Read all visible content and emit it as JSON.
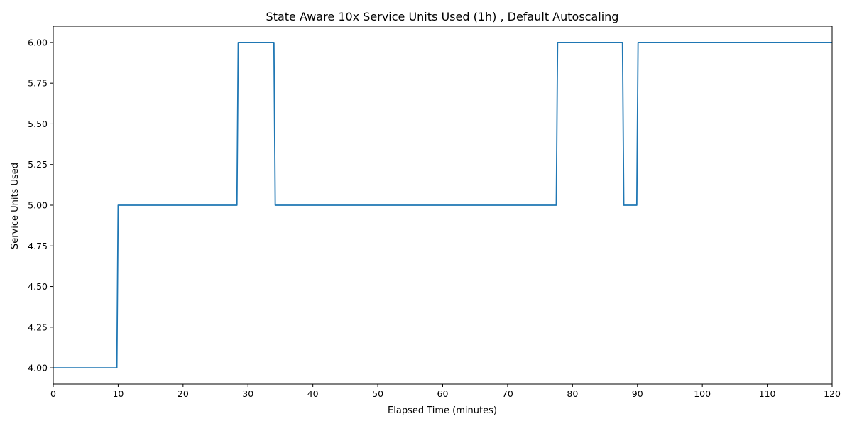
{
  "chart_data": {
    "type": "line",
    "title": "State Aware 10x Service Units Used (1h) , Default Autoscaling",
    "xlabel": "Elapsed Time (minutes)",
    "ylabel": "Service Units Used",
    "xlim": [
      0,
      120
    ],
    "ylim": [
      3.9,
      6.1
    ],
    "x_ticks": [
      0,
      10,
      20,
      30,
      40,
      50,
      60,
      70,
      80,
      90,
      100,
      110,
      120
    ],
    "x_tick_labels": [
      "0",
      "10",
      "20",
      "30",
      "40",
      "50",
      "60",
      "70",
      "80",
      "90",
      "100",
      "110",
      "120"
    ],
    "y_ticks": [
      4.0,
      4.25,
      4.5,
      4.75,
      5.0,
      5.25,
      5.5,
      5.75,
      6.0
    ],
    "y_tick_labels": [
      "4.00",
      "4.25",
      "4.50",
      "4.75",
      "5.00",
      "5.25",
      "5.50",
      "5.75",
      "6.00"
    ],
    "grid": false,
    "color": "#1f77b4",
    "series": [
      {
        "x": [
          0,
          9.8,
          10.0,
          28.3,
          28.5,
          34.0,
          34.2,
          77.5,
          77.7,
          87.7,
          87.9,
          89.9,
          90.1,
          120
        ],
        "values": [
          4.0,
          4.0,
          5.0,
          5.0,
          6.0,
          6.0,
          5.0,
          5.0,
          6.0,
          6.0,
          5.0,
          5.0,
          6.0,
          6.0
        ]
      }
    ]
  }
}
